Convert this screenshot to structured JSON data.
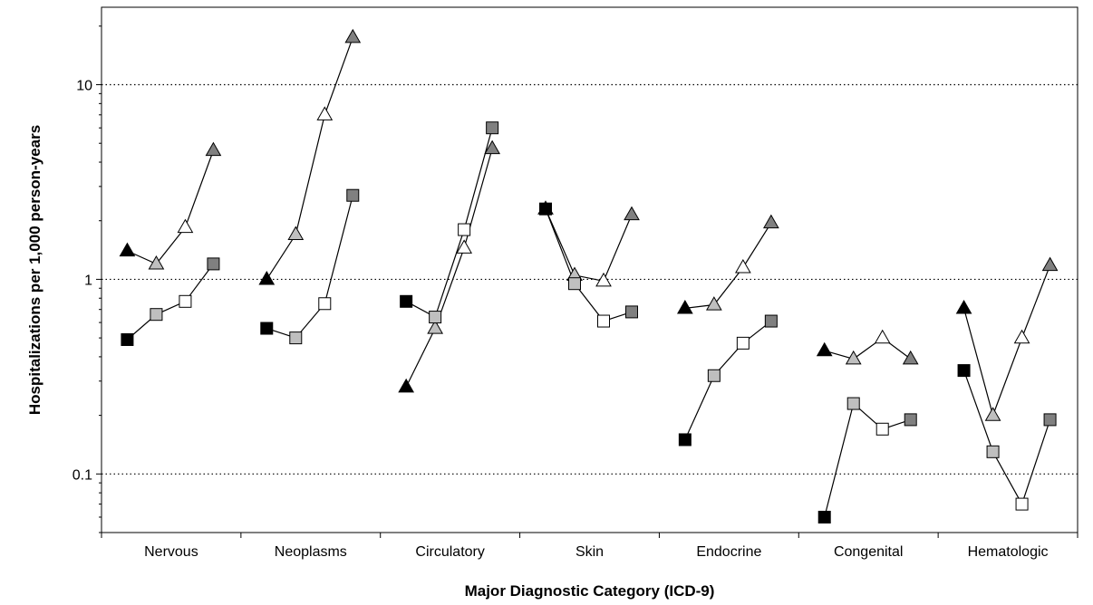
{
  "chart_data": {
    "type": "scatter",
    "title": "",
    "xlabel": "Major Diagnostic Category (ICD-9)",
    "ylabel": "Hospitalizations per 1,000 person-years",
    "yscale": "log",
    "ylim": [
      0.05,
      25
    ],
    "yticks": [
      {
        "value": 0.1,
        "label": "0.1"
      },
      {
        "value": 1,
        "label": "1"
      },
      {
        "value": 10,
        "label": "10"
      }
    ],
    "grid": "horizontal dotted at major ticks",
    "legend": "none",
    "categories": [
      "Nervous",
      "Neoplasms",
      "Circulatory",
      "Skin",
      "Endocrine",
      "Congenital",
      "Hematologic"
    ],
    "marker_fills": [
      "#000000",
      "#bfbfbf",
      "#ffffff",
      "#808080"
    ],
    "series": [
      {
        "marker": "triangle",
        "values": [
          [
            1.4,
            1.2,
            1.85,
            4.6
          ],
          [
            1.0,
            1.7,
            7.0,
            17.5
          ],
          [
            0.28,
            0.56,
            1.45,
            4.7
          ],
          [
            2.3,
            1.05,
            0.98,
            2.15
          ],
          [
            0.71,
            0.74,
            1.15,
            1.95
          ],
          [
            0.43,
            0.39,
            0.5,
            0.39
          ],
          [
            0.71,
            0.2,
            0.5,
            1.18
          ]
        ]
      },
      {
        "marker": "square",
        "values": [
          [
            0.49,
            0.66,
            0.77,
            1.2
          ],
          [
            0.56,
            0.5,
            0.75,
            2.7
          ],
          [
            0.77,
            0.64,
            1.8,
            6.0
          ],
          [
            2.3,
            0.95,
            0.61,
            0.68
          ],
          [
            0.15,
            0.32,
            0.47,
            0.61
          ],
          [
            0.06,
            0.23,
            0.17,
            0.19
          ],
          [
            0.34,
            0.13,
            0.07,
            0.19
          ]
        ]
      }
    ]
  }
}
